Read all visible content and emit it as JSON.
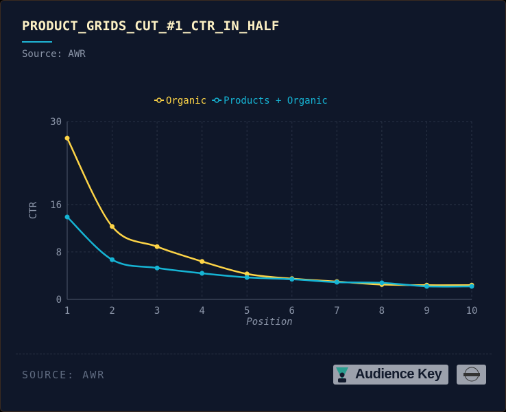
{
  "header": {
    "title": "PRODUCT_GRIDS_CUT_#1_CTR_IN_HALF",
    "subtitle": "Source: AWR"
  },
  "footer": {
    "source": "SOURCE: AWR",
    "logo_text": "Audience Key"
  },
  "colors": {
    "background": "#0f1729",
    "organic": "#fdd447",
    "products": "#16b4d4",
    "accent": "#1fb6d6"
  },
  "chart_data": {
    "type": "line",
    "title": "",
    "xlabel": "Position",
    "ylabel": "CTR",
    "x": [
      1,
      2,
      3,
      4,
      5,
      6,
      7,
      8,
      9,
      10
    ],
    "xlim": [
      1,
      10
    ],
    "ylim": [
      0,
      30
    ],
    "yticks": [
      0,
      8,
      16,
      30
    ],
    "xticks": [
      1,
      2,
      3,
      4,
      5,
      6,
      7,
      8,
      9,
      10
    ],
    "grid": true,
    "legend_placement": "top-center",
    "series": [
      {
        "name": "Organic",
        "color": "#fdd447",
        "values": [
          27.2,
          12.3,
          8.9,
          6.4,
          4.3,
          3.5,
          3.0,
          2.5,
          2.4,
          2.4
        ]
      },
      {
        "name": "Products + Organic",
        "color": "#16b4d4",
        "values": [
          13.9,
          6.7,
          5.3,
          4.4,
          3.7,
          3.4,
          2.9,
          2.8,
          2.2,
          2.2
        ]
      }
    ]
  }
}
